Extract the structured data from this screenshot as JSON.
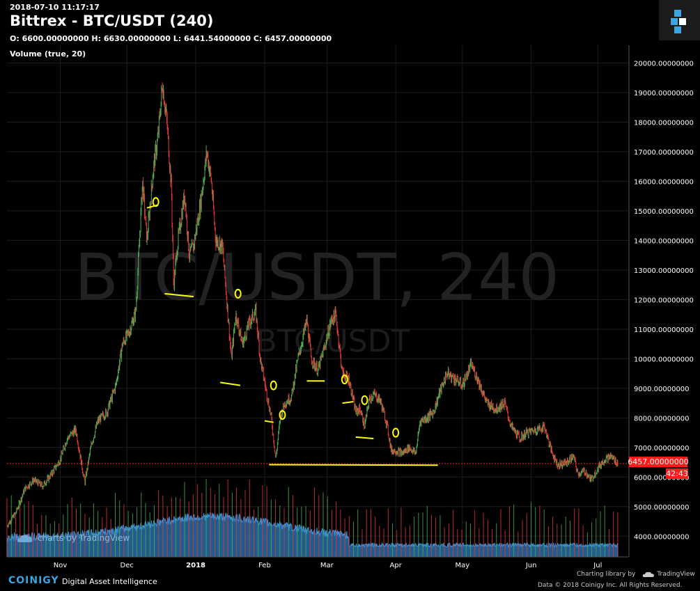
{
  "header": {
    "timestamp": "2018-07-10 11:17:17",
    "title": "Bittrex - BTC/USDT (240)",
    "ohlc": "O: 6600.00000000 H: 6630.00000000 L: 6441.54000000 C: 6457.00000000",
    "volume_label": "Volume (true, 20)"
  },
  "watermark": {
    "main": "BTC/USDT, 240",
    "sub": "BTC/USDT"
  },
  "price_tag": {
    "value": "6457.00000000",
    "countdown": "42:43",
    "color": "#ff1a1a"
  },
  "footer": {
    "brand": "COINIGY",
    "tagline": "Digital Asset Intelligence",
    "charting": "Charting library by",
    "tradingview": "TradingView",
    "copyright": "Data © 2018   Coinigy Inc. All Rights Reserved.",
    "badge": "charts by TradingView"
  },
  "colors": {
    "up": "#4caf50",
    "down": "#e53935",
    "volume_area": "#2e7bbf",
    "annotation": "#ffff00",
    "accent": "#3aa5e0"
  },
  "chart_data": {
    "type": "candlestick",
    "ylim": [
      3300,
      20600
    ],
    "yticks": [
      "4000.00000000",
      "5000.00000000",
      "6000.00000000",
      "7000.00000000",
      "8000.00000000",
      "9000.00000000",
      "10000.00000000",
      "11000.00000000",
      "12000.00000000",
      "13000.00000000",
      "14000.00000000",
      "15000.00000000",
      "16000.00000000",
      "17000.00000000",
      "18000.00000000",
      "19000.00000000",
      "20000.00000000"
    ],
    "ytick_values": [
      4000,
      5000,
      6000,
      7000,
      8000,
      9000,
      10000,
      11000,
      12000,
      13000,
      14000,
      15000,
      16000,
      17000,
      18000,
      19000,
      20000
    ],
    "x_range": [
      "2017-10-08",
      "2018-07-15"
    ],
    "xticks": [
      {
        "label": "Nov",
        "date": "2017-11-01"
      },
      {
        "label": "Dec",
        "date": "2017-12-01"
      },
      {
        "label": "2018",
        "date": "2018-01-01"
      },
      {
        "label": "Feb",
        "date": "2018-02-01"
      },
      {
        "label": "Mar",
        "date": "2018-03-01"
      },
      {
        "label": "Apr",
        "date": "2018-04-01"
      },
      {
        "label": "May",
        "date": "2018-05-01"
      },
      {
        "label": "Jun",
        "date": "2018-06-01"
      },
      {
        "label": "Jul",
        "date": "2018-07-01"
      }
    ],
    "last_price": 6457,
    "price_path": [
      [
        "2017-10-08",
        4350
      ],
      [
        "2017-10-12",
        4800
      ],
      [
        "2017-10-16",
        5600
      ],
      [
        "2017-10-20",
        5900
      ],
      [
        "2017-10-24",
        5700
      ],
      [
        "2017-10-28",
        6100
      ],
      [
        "2017-11-01",
        6600
      ],
      [
        "2017-11-04",
        7300
      ],
      [
        "2017-11-08",
        7600
      ],
      [
        "2017-11-10",
        6700
      ],
      [
        "2017-11-12",
        5800
      ],
      [
        "2017-11-15",
        7100
      ],
      [
        "2017-11-18",
        7900
      ],
      [
        "2017-11-22",
        8200
      ],
      [
        "2017-11-26",
        9100
      ],
      [
        "2017-11-29",
        10500
      ],
      [
        "2017-12-02",
        10900
      ],
      [
        "2017-12-05",
        11600
      ],
      [
        "2017-12-07",
        14500
      ],
      [
        "2017-12-08",
        16000
      ],
      [
        "2017-12-10",
        14000
      ],
      [
        "2017-12-13",
        16500
      ],
      [
        "2017-12-15",
        17500
      ],
      [
        "2017-12-17",
        19300
      ],
      [
        "2017-12-19",
        18000
      ],
      [
        "2017-12-21",
        15800
      ],
      [
        "2017-12-22",
        12500
      ],
      [
        "2017-12-24",
        14000
      ],
      [
        "2017-12-27",
        15600
      ],
      [
        "2017-12-29",
        13500
      ],
      [
        "2017-12-31",
        13800
      ],
      [
        "2018-01-03",
        15200
      ],
      [
        "2018-01-06",
        17000
      ],
      [
        "2018-01-08",
        16000
      ],
      [
        "2018-01-10",
        14000
      ],
      [
        "2018-01-13",
        13800
      ],
      [
        "2018-01-16",
        11000
      ],
      [
        "2018-01-17",
        10000
      ],
      [
        "2018-01-19",
        11500
      ],
      [
        "2018-01-22",
        10500
      ],
      [
        "2018-01-25",
        11200
      ],
      [
        "2018-01-28",
        11600
      ],
      [
        "2018-01-30",
        10000
      ],
      [
        "2018-02-02",
        8800
      ],
      [
        "2018-02-04",
        8000
      ],
      [
        "2018-02-06",
        6600
      ],
      [
        "2018-02-08",
        8000
      ],
      [
        "2018-02-10",
        8500
      ],
      [
        "2018-02-13",
        8700
      ],
      [
        "2018-02-16",
        10000
      ],
      [
        "2018-02-20",
        11300
      ],
      [
        "2018-02-22",
        10000
      ],
      [
        "2018-02-25",
        9600
      ],
      [
        "2018-02-28",
        10400
      ],
      [
        "2018-03-03",
        11300
      ],
      [
        "2018-03-05",
        11500
      ],
      [
        "2018-03-08",
        9500
      ],
      [
        "2018-03-11",
        9300
      ],
      [
        "2018-03-14",
        8200
      ],
      [
        "2018-03-16",
        8300
      ],
      [
        "2018-03-18",
        7700
      ],
      [
        "2018-03-20",
        8600
      ],
      [
        "2018-03-22",
        8800
      ],
      [
        "2018-03-25",
        8600
      ],
      [
        "2018-03-28",
        7800
      ],
      [
        "2018-03-30",
        6900
      ],
      [
        "2018-04-01",
        6900
      ],
      [
        "2018-04-04",
        6800
      ],
      [
        "2018-04-07",
        7000
      ],
      [
        "2018-04-10",
        6800
      ],
      [
        "2018-04-12",
        7900
      ],
      [
        "2018-04-15",
        8000
      ],
      [
        "2018-04-18",
        8200
      ],
      [
        "2018-04-21",
        8900
      ],
      [
        "2018-04-24",
        9500
      ],
      [
        "2018-04-28",
        9300
      ],
      [
        "2018-05-01",
        9100
      ],
      [
        "2018-05-05",
        9800
      ],
      [
        "2018-05-08",
        9300
      ],
      [
        "2018-05-12",
        8500
      ],
      [
        "2018-05-16",
        8300
      ],
      [
        "2018-05-20",
        8500
      ],
      [
        "2018-05-23",
        7700
      ],
      [
        "2018-05-27",
        7300
      ],
      [
        "2018-05-30",
        7500
      ],
      [
        "2018-06-03",
        7600
      ],
      [
        "2018-06-07",
        7700
      ],
      [
        "2018-06-10",
        6900
      ],
      [
        "2018-06-13",
        6400
      ],
      [
        "2018-06-17",
        6500
      ],
      [
        "2018-06-20",
        6700
      ],
      [
        "2018-06-22",
        6100
      ],
      [
        "2018-06-25",
        6200
      ],
      [
        "2018-06-28",
        5900
      ],
      [
        "2018-07-01",
        6300
      ],
      [
        "2018-07-04",
        6600
      ],
      [
        "2018-07-07",
        6700
      ],
      [
        "2018-07-10",
        6457
      ]
    ],
    "support_lines": [
      {
        "from": [
          "2017-12-10",
          15100
        ],
        "to": [
          "2017-12-15",
          15200
        ]
      },
      {
        "from": [
          "2017-12-18",
          12200
        ],
        "to": [
          "2017-12-31",
          12100
        ]
      },
      {
        "from": [
          "2018-01-12",
          9200
        ],
        "to": [
          "2018-01-21",
          9100
        ]
      },
      {
        "from": [
          "2018-02-01",
          7900
        ],
        "to": [
          "2018-02-05",
          7850
        ]
      },
      {
        "from": [
          "2018-02-20",
          9250
        ],
        "to": [
          "2018-02-28",
          9250
        ]
      },
      {
        "from": [
          "2018-03-08",
          8500
        ],
        "to": [
          "2018-03-13",
          8550
        ]
      },
      {
        "from": [
          "2018-03-14",
          7350
        ],
        "to": [
          "2018-03-22",
          7300
        ]
      },
      {
        "from": [
          "2018-02-03",
          6420
        ],
        "to": [
          "2018-04-20",
          6400
        ]
      }
    ],
    "annotation_marks": [
      {
        "at": [
          "2017-12-14",
          15300
        ]
      },
      {
        "at": [
          "2018-01-20",
          12200
        ]
      },
      {
        "at": [
          "2018-02-05",
          9100
        ]
      },
      {
        "at": [
          "2018-02-09",
          8100
        ]
      },
      {
        "at": [
          "2018-03-09",
          9300
        ]
      },
      {
        "at": [
          "2018-03-18",
          8600
        ]
      },
      {
        "at": [
          "2018-04-01",
          7500
        ]
      }
    ]
  }
}
